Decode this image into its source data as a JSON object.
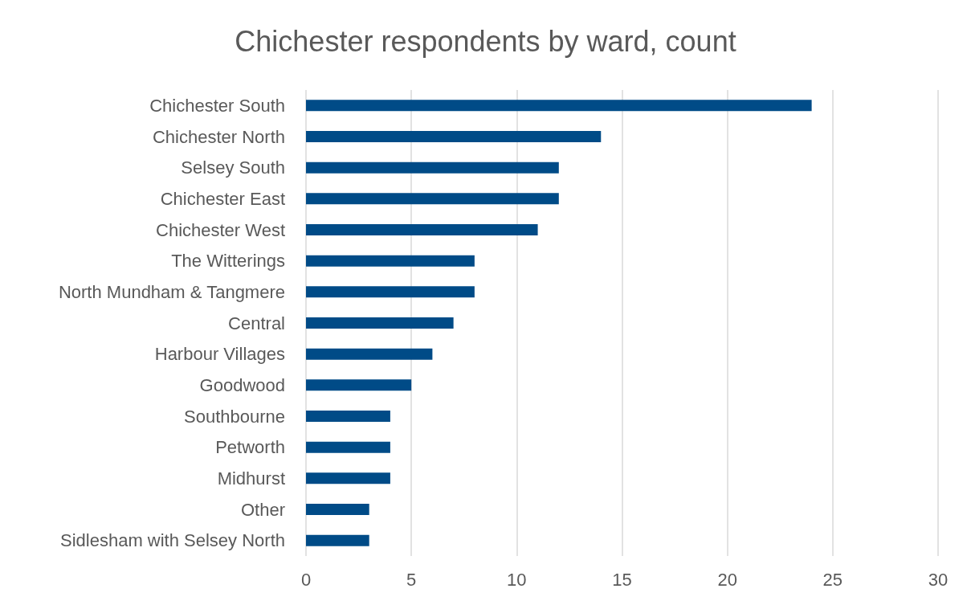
{
  "chart_data": {
    "type": "bar",
    "orientation": "horizontal",
    "title": "Chichester respondents by ward, count",
    "categories": [
      "Chichester South",
      "Chichester North",
      "Selsey South",
      "Chichester East",
      "Chichester West",
      "The Witterings",
      "North Mundham & Tangmere",
      "Central",
      "Harbour Villages",
      "Goodwood",
      "Southbourne",
      "Petworth",
      "Midhurst",
      "Other",
      "Sidlesham with Selsey North"
    ],
    "values": [
      24,
      14,
      12,
      12,
      11,
      8,
      8,
      7,
      6,
      5,
      4,
      4,
      4,
      3,
      3
    ],
    "color": "#004b87",
    "xlim": [
      0,
      30
    ],
    "xticks": [
      0,
      5,
      10,
      15,
      20,
      25,
      30
    ],
    "grid": "x"
  }
}
